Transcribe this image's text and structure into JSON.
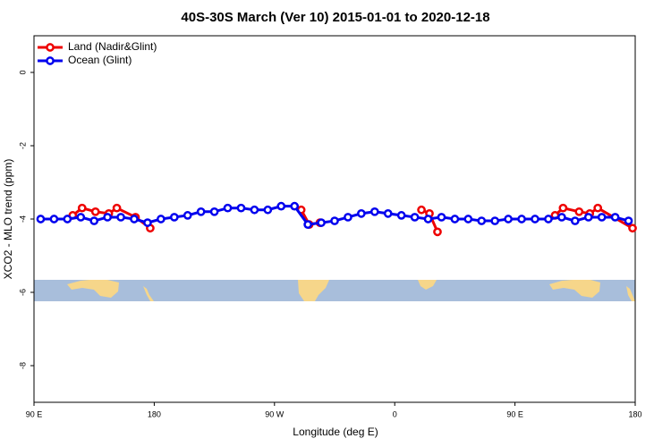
{
  "chart_data": {
    "type": "line",
    "title": "40S-30S March (Ver 10)   2015-01-01 to 2020-12-18",
    "x_label": "Longitude (deg E)",
    "y_label": "XCO2 - MLO trend (ppm)",
    "xlim": [
      90,
      540
    ],
    "xticks": [
      {
        "value": 90,
        "label": "90 E"
      },
      {
        "value": 180,
        "label": "180"
      },
      {
        "value": 270,
        "label": "90 W"
      },
      {
        "value": 360,
        "label": "0"
      },
      {
        "value": 450,
        "label": "90 E"
      },
      {
        "value": 540,
        "label": "180"
      }
    ],
    "ylim": [
      -9,
      1
    ],
    "yticks": [
      0,
      -2,
      -4,
      -6,
      -8
    ],
    "legend": "top-left",
    "series": [
      {
        "name": "Land (Nadir&Glint)",
        "color": "#ee0000",
        "x": [
          119,
          126,
          136,
          146,
          152,
          166,
          177,
          null,
          290,
          296,
          304,
          null,
          380,
          386,
          392,
          null,
          480,
          486,
          498,
          506,
          512,
          538
        ],
        "values": [
          -3.9,
          -3.7,
          -3.8,
          -3.85,
          -3.7,
          -3.95,
          -4.25,
          null,
          -3.75,
          -4.15,
          -4.1,
          null,
          -3.75,
          -3.85,
          -4.35,
          null,
          -3.9,
          -3.7,
          -3.8,
          -3.85,
          -3.7,
          -4.25
        ]
      },
      {
        "name": "Ocean (Glint)",
        "color": "#0000ee",
        "x": [
          95,
          105,
          115,
          125,
          135,
          145,
          155,
          165,
          175,
          185,
          195,
          205,
          215,
          225,
          235,
          245,
          255,
          265,
          275,
          285,
          295,
          305,
          315,
          325,
          335,
          345,
          355,
          365,
          375,
          385,
          395,
          405,
          415,
          425,
          435,
          445,
          455,
          465,
          475,
          485,
          495,
          505,
          515,
          525,
          535
        ],
        "values": [
          -4.0,
          -4.0,
          -4.0,
          -3.95,
          -4.05,
          -3.95,
          -3.95,
          -4.0,
          -4.1,
          -4.0,
          -3.95,
          -3.9,
          -3.8,
          -3.8,
          -3.7,
          -3.7,
          -3.75,
          -3.75,
          -3.65,
          -3.65,
          -4.15,
          -4.1,
          -4.05,
          -3.95,
          -3.85,
          -3.8,
          -3.85,
          -3.9,
          -3.95,
          -4.0,
          -3.95,
          -4.0,
          -4.0,
          -4.05,
          -4.05,
          -4.0,
          -4.0,
          -4.0,
          -4.0,
          -3.95,
          -4.05,
          -3.95,
          -3.95,
          -3.95,
          -4.05
        ]
      }
    ]
  }
}
